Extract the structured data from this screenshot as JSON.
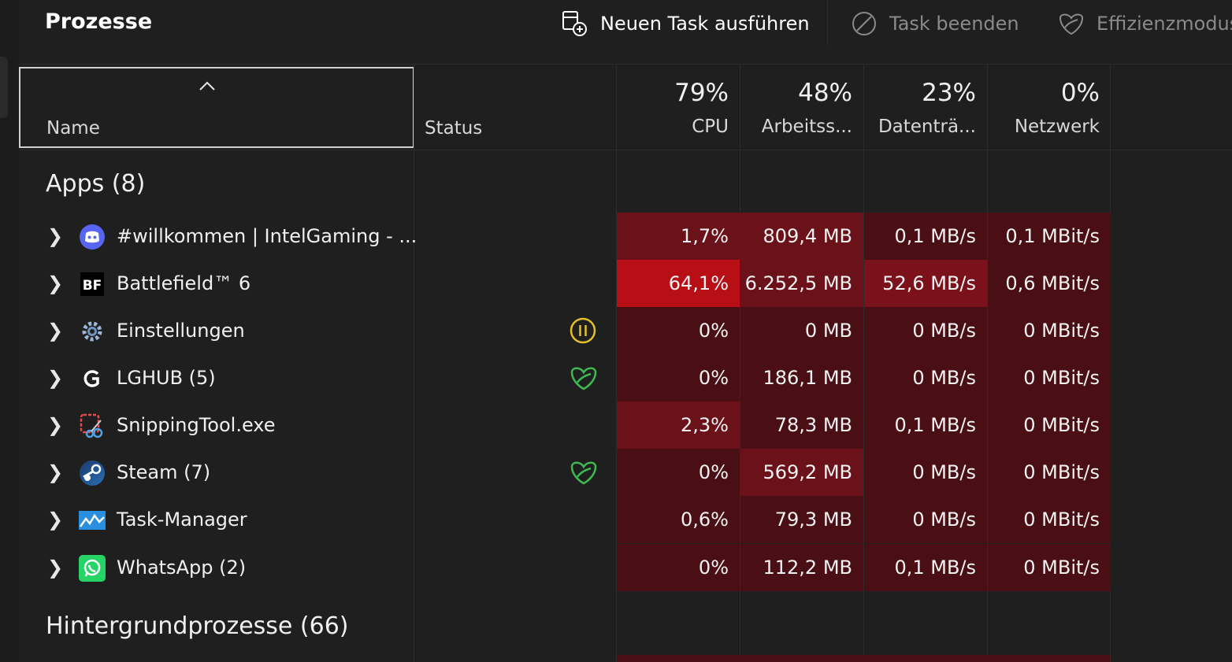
{
  "toolbar": {
    "title": "Prozesse",
    "new_task": "Neuen Task ausführen",
    "end_task": "Task beenden",
    "efficiency": "Effizienzmodus"
  },
  "columns": {
    "name": "Name",
    "status": "Status",
    "cpu": {
      "pct": "79%",
      "label": "CPU"
    },
    "memory": {
      "pct": "48%",
      "label": "Arbeitss..."
    },
    "disk": {
      "pct": "23%",
      "label": "Datenträ..."
    },
    "network": {
      "pct": "0%",
      "label": "Netzwerk"
    }
  },
  "groups": {
    "apps": "Apps (8)",
    "background": "Hintergrundprozesse (66)"
  },
  "rows": [
    {
      "name": "#willkommen | IntelGaming - ...",
      "icon": "discord-icon",
      "status": "",
      "cpu": "1,7%",
      "memory": "809,4 MB",
      "disk": "0,1 MB/s",
      "network": "0,1 MBit/s"
    },
    {
      "name": "Battlefield™ 6",
      "icon": "battlefield-icon",
      "status": "",
      "cpu": "64,1%",
      "memory": "6.252,5 MB",
      "disk": "52,6 MB/s",
      "network": "0,6 MBit/s"
    },
    {
      "name": "Einstellungen",
      "icon": "settings-gear-icon",
      "status": "suspended",
      "cpu": "0%",
      "memory": "0 MB",
      "disk": "0 MB/s",
      "network": "0 MBit/s"
    },
    {
      "name": "LGHUB (5)",
      "icon": "logitech-g-icon",
      "status": "efficiency",
      "cpu": "0%",
      "memory": "186,1 MB",
      "disk": "0 MB/s",
      "network": "0 MBit/s"
    },
    {
      "name": "SnippingTool.exe",
      "icon": "snipping-tool-icon",
      "status": "",
      "cpu": "2,3%",
      "memory": "78,3 MB",
      "disk": "0,1 MB/s",
      "network": "0 MBit/s"
    },
    {
      "name": "Steam (7)",
      "icon": "steam-icon",
      "status": "efficiency",
      "cpu": "0%",
      "memory": "569,2 MB",
      "disk": "0 MB/s",
      "network": "0 MBit/s"
    },
    {
      "name": "Task-Manager",
      "icon": "task-manager-icon",
      "status": "",
      "cpu": "0,6%",
      "memory": "79,3 MB",
      "disk": "0 MB/s",
      "network": "0 MBit/s"
    },
    {
      "name": "WhatsApp (2)",
      "icon": "whatsapp-icon",
      "status": "",
      "cpu": "0%",
      "memory": "112,2 MB",
      "disk": "0,1 MB/s",
      "network": "0 MBit/s"
    }
  ],
  "colors": {
    "heat_low": "#4a0f14",
    "heat_mid": "#6b111a",
    "heat_high": "#b80f17",
    "efficiency_green": "#3fb950",
    "suspended_yellow": "#e3c02a"
  }
}
